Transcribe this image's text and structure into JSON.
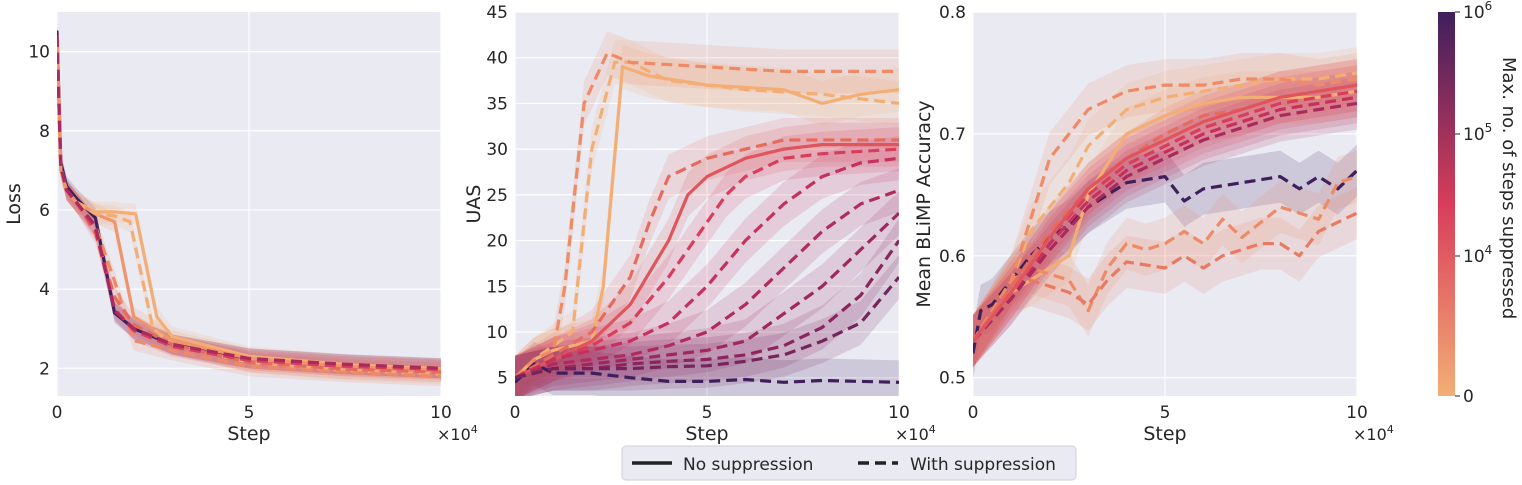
{
  "legend": {
    "solid_label": "No suppression",
    "dashed_label": "With suppression"
  },
  "colorbar": {
    "label": "Max. no. of steps suppressed",
    "ticks": [
      "0",
      "10^4",
      "10^5",
      "10^6"
    ],
    "scale": "log",
    "low_color": "#f3ae76",
    "mid_color": "#d83d5b",
    "high_color": "#3f1f5c"
  },
  "chart_data": [
    {
      "type": "line",
      "xlabel": "Step",
      "ylabel": "Loss",
      "x_multiplier": "×10^4",
      "xlim": [
        0,
        10
      ],
      "ylim": [
        1.3,
        11
      ],
      "x_ticks": [
        "0",
        "5",
        "10"
      ],
      "y_ticks": [
        "2",
        "4",
        "6",
        "8",
        "10"
      ],
      "series": [
        {
          "style": "solid",
          "color": "#3f1f5c",
          "x": [
            0,
            0.1,
            0.25,
            0.5,
            1,
            1.5,
            2,
            3,
            5,
            7.5,
            10
          ],
          "y": [
            10.5,
            7.2,
            6.6,
            6.3,
            5.8,
            3.4,
            3.0,
            2.6,
            2.25,
            2.1,
            2.0
          ]
        },
        {
          "style": "solid",
          "color": "#f3ae76",
          "x": [
            0,
            0.1,
            0.25,
            0.5,
            1,
            1.5,
            2.05,
            2.6,
            3,
            5,
            7.5,
            10
          ],
          "y": [
            10.3,
            7.0,
            6.5,
            6.2,
            5.95,
            5.95,
            5.9,
            3.3,
            2.8,
            2.3,
            2.1,
            2.0
          ]
        },
        {
          "style": "solid",
          "color": "#f0956b",
          "x": [
            0,
            0.1,
            0.25,
            0.5,
            1,
            1.5,
            2,
            3,
            5,
            7.5,
            10
          ],
          "y": [
            10.3,
            7.0,
            6.5,
            6.2,
            5.9,
            5.7,
            3.3,
            2.7,
            2.25,
            2.05,
            1.95
          ]
        },
        {
          "style": "dashed",
          "color": "#f3ae76",
          "x": [
            0,
            0.1,
            0.25,
            0.5,
            1,
            1.5,
            1.9,
            2.5,
            3,
            5,
            7.5,
            10
          ],
          "y": [
            10.4,
            7.1,
            6.5,
            6.2,
            5.9,
            5.85,
            5.7,
            3.0,
            2.6,
            2.15,
            1.95,
            1.85
          ]
        },
        {
          "style": "dashed",
          "color": "#ee8a66",
          "x": [
            0,
            0.1,
            0.25,
            0.5,
            1,
            1.5,
            2,
            3,
            5,
            7.5,
            10
          ],
          "y": [
            10.4,
            7.1,
            6.5,
            6.2,
            5.6,
            4.2,
            2.7,
            2.45,
            2.05,
            1.9,
            1.8
          ]
        },
        {
          "style": "dashed",
          "color": "#e56b5d",
          "x": [
            0,
            0.1,
            0.25,
            0.5,
            1,
            1.5,
            2,
            3,
            5,
            7.5,
            10
          ],
          "y": [
            10.4,
            7.1,
            6.5,
            6.2,
            5.4,
            3.8,
            3.1,
            2.6,
            2.15,
            1.98,
            1.9
          ]
        },
        {
          "style": "dashed",
          "color": "#d83d5b",
          "x": [
            0,
            0.1,
            0.25,
            0.5,
            1,
            1.5,
            2,
            3,
            5,
            7.5,
            10
          ],
          "y": [
            10.4,
            7.1,
            6.5,
            6.2,
            5.5,
            3.5,
            2.95,
            2.55,
            2.2,
            2.05,
            1.97
          ]
        },
        {
          "style": "dashed",
          "color": "#a82a5e",
          "x": [
            0,
            0.1,
            0.25,
            0.5,
            1,
            1.5,
            2,
            3,
            5,
            7.5,
            10
          ],
          "y": [
            10.4,
            7.1,
            6.5,
            6.2,
            5.6,
            3.45,
            3.0,
            2.6,
            2.25,
            2.1,
            2.0
          ]
        }
      ]
    },
    {
      "type": "line",
      "xlabel": "Step",
      "ylabel": "UAS",
      "x_multiplier": "×10^4",
      "xlim": [
        0,
        10
      ],
      "ylim": [
        3,
        45
      ],
      "x_ticks": [
        "0",
        "5",
        "10"
      ],
      "y_ticks": [
        "5",
        "10",
        "15",
        "20",
        "25",
        "30",
        "35",
        "40",
        "45"
      ],
      "series": [
        {
          "style": "dashed",
          "color": "#3f1f5c",
          "x": [
            0,
            0.5,
            1,
            2,
            3,
            4,
            5,
            6,
            7,
            8,
            9,
            10
          ],
          "y": [
            4.5,
            6.5,
            5.5,
            5.5,
            5.0,
            4.6,
            4.6,
            4.8,
            4.5,
            4.7,
            4.6,
            4.5
          ]
        },
        {
          "style": "solid",
          "color": "#f3ae76",
          "x": [
            0,
            0.5,
            1,
            1.5,
            2,
            2.3,
            2.8,
            3.5,
            5,
            7,
            8,
            9,
            10
          ],
          "y": [
            5,
            7,
            8,
            8.5,
            9,
            15,
            39,
            38,
            37,
            36.5,
            35,
            36,
            36.5
          ]
        },
        {
          "style": "dashed",
          "color": "#f3ae76",
          "x": [
            0,
            0.5,
            1,
            1.5,
            2,
            2.6,
            3,
            4,
            6,
            8,
            10
          ],
          "y": [
            5,
            7,
            8.5,
            10,
            30,
            39.5,
            39.5,
            37.5,
            36.5,
            36,
            35
          ]
        },
        {
          "style": "dashed",
          "color": "#ee8a66",
          "x": [
            0,
            0.5,
            1,
            1.3,
            1.8,
            2.4,
            3,
            5,
            7,
            10
          ],
          "y": [
            5,
            7,
            8,
            15,
            35,
            40.5,
            39.5,
            39,
            38.5,
            38.5
          ]
        },
        {
          "style": "dashed",
          "color": "#e56b5d",
          "x": [
            0,
            1,
            2,
            3,
            3.5,
            4,
            5,
            6,
            7,
            8,
            10
          ],
          "y": [
            5,
            7.5,
            10,
            16,
            22,
            27,
            29,
            30,
            31,
            31,
            31
          ]
        },
        {
          "style": "solid",
          "color": "#e0555c",
          "x": [
            0,
            1,
            2,
            3,
            4,
            4.5,
            5,
            6,
            7,
            8,
            10
          ],
          "y": [
            5,
            7,
            9,
            13,
            20,
            25,
            27,
            29,
            30,
            30.5,
            30.5
          ]
        },
        {
          "style": "dashed",
          "color": "#d83d5b",
          "x": [
            0,
            1,
            2,
            3,
            4,
            5,
            5.5,
            6,
            7,
            8,
            10
          ],
          "y": [
            5,
            7,
            8.5,
            11,
            16,
            22,
            25,
            27,
            29,
            29.5,
            30
          ]
        },
        {
          "style": "dashed",
          "color": "#c5305d",
          "x": [
            0,
            1,
            2,
            3,
            4,
            5,
            6,
            7,
            8,
            9,
            10
          ],
          "y": [
            5,
            7,
            8,
            9,
            11,
            15,
            20,
            24,
            27,
            28.5,
            29
          ]
        },
        {
          "style": "dashed",
          "color": "#b12b5e",
          "x": [
            0,
            1,
            2,
            3,
            4,
            5,
            6,
            7,
            8,
            9,
            10
          ],
          "y": [
            5,
            6.5,
            7,
            7.5,
            8.5,
            10,
            13,
            17,
            21,
            24,
            25.5
          ]
        },
        {
          "style": "dashed",
          "color": "#9e285e",
          "x": [
            0,
            1,
            2,
            3,
            4,
            5,
            6,
            7,
            8,
            9,
            10
          ],
          "y": [
            5,
            6,
            6.5,
            7,
            7.5,
            8,
            9,
            12,
            15,
            19,
            23
          ]
        },
        {
          "style": "dashed",
          "color": "#8a265d",
          "x": [
            0,
            1,
            2,
            3,
            4,
            5,
            6,
            7,
            8,
            9,
            10
          ],
          "y": [
            5,
            6,
            6,
            6.5,
            6.8,
            7,
            7.5,
            8.5,
            10.5,
            14,
            20
          ]
        },
        {
          "style": "dashed",
          "color": "#76245c",
          "x": [
            0,
            1,
            2,
            3,
            4,
            5,
            6,
            7,
            8,
            9,
            10
          ],
          "y": [
            5,
            6,
            6,
            6,
            6.2,
            6.3,
            6.8,
            7.5,
            9,
            11,
            16
          ]
        }
      ]
    },
    {
      "type": "line",
      "xlabel": "Step",
      "ylabel": "Mean BLiMP Accuracy",
      "x_multiplier": "×10^4",
      "xlim": [
        0,
        10
      ],
      "ylim": [
        0.485,
        0.8
      ],
      "x_ticks": [
        "0",
        "5",
        "10"
      ],
      "y_ticks": [
        "0.5",
        "0.6",
        "0.7",
        "0.8"
      ],
      "series": [
        {
          "style": "dashed",
          "color": "#3f1f5c",
          "x": [
            0,
            0.2,
            0.5,
            1,
            1.5,
            2,
            2.5,
            3,
            3.5,
            4,
            5,
            5.5,
            6,
            7,
            8,
            8.5,
            9,
            9.5,
            10
          ],
          "y": [
            0.52,
            0.555,
            0.56,
            0.58,
            0.6,
            0.615,
            0.625,
            0.64,
            0.65,
            0.66,
            0.665,
            0.645,
            0.655,
            0.66,
            0.665,
            0.655,
            0.665,
            0.655,
            0.67
          ]
        },
        {
          "style": "solid",
          "color": "#f3ae76",
          "x": [
            0,
            1,
            2,
            2.5,
            3,
            4,
            5,
            6,
            7,
            8,
            9,
            10
          ],
          "y": [
            0.53,
            0.57,
            0.59,
            0.6,
            0.65,
            0.7,
            0.715,
            0.725,
            0.73,
            0.73,
            0.73,
            0.735
          ]
        },
        {
          "style": "dashed",
          "color": "#f3ae76",
          "x": [
            0,
            1,
            1.5,
            2,
            2.5,
            3,
            4,
            5,
            6,
            7,
            8,
            9,
            10
          ],
          "y": [
            0.53,
            0.58,
            0.62,
            0.64,
            0.66,
            0.69,
            0.72,
            0.73,
            0.735,
            0.74,
            0.745,
            0.745,
            0.75
          ]
        },
        {
          "style": "dashed",
          "color": "#ee8a66",
          "x": [
            0,
            1,
            1.5,
            2,
            2.5,
            3,
            3.5,
            4,
            4.5,
            5,
            5.5,
            6,
            6.5,
            7,
            8,
            9,
            9.5,
            10
          ],
          "y": [
            0.53,
            0.58,
            0.59,
            0.585,
            0.58,
            0.555,
            0.59,
            0.61,
            0.605,
            0.61,
            0.62,
            0.61,
            0.63,
            0.615,
            0.64,
            0.63,
            0.66,
            0.665
          ]
        },
        {
          "style": "dashed",
          "color": "#e77a62",
          "x": [
            0,
            1,
            1.5,
            2,
            2.5,
            3,
            3.5,
            4,
            5,
            5.5,
            6,
            6.5,
            7,
            7.5,
            8,
            8.5,
            9,
            10
          ],
          "y": [
            0.53,
            0.575,
            0.58,
            0.575,
            0.57,
            0.56,
            0.58,
            0.595,
            0.59,
            0.6,
            0.59,
            0.6,
            0.605,
            0.61,
            0.61,
            0.6,
            0.62,
            0.635
          ]
        },
        {
          "style": "dashed",
          "color": "#ee8a66",
          "x": [
            0,
            1,
            1.5,
            2,
            2.5,
            3,
            4,
            5,
            6,
            7,
            8,
            9,
            10
          ],
          "y": [
            0.53,
            0.58,
            0.63,
            0.68,
            0.7,
            0.72,
            0.735,
            0.74,
            0.74,
            0.745,
            0.745,
            0.74,
            0.745
          ]
        },
        {
          "style": "dashed",
          "color": "#e56b5d",
          "x": [
            0,
            1,
            2,
            3,
            4,
            5,
            6,
            7,
            8,
            9,
            10
          ],
          "y": [
            0.53,
            0.575,
            0.62,
            0.655,
            0.68,
            0.7,
            0.715,
            0.72,
            0.73,
            0.735,
            0.74
          ]
        },
        {
          "style": "dashed",
          "color": "#d83d5b",
          "x": [
            0,
            1,
            2,
            3,
            4,
            5,
            6,
            7,
            8,
            9,
            10
          ],
          "y": [
            0.53,
            0.57,
            0.615,
            0.65,
            0.675,
            0.69,
            0.705,
            0.715,
            0.725,
            0.73,
            0.735
          ]
        },
        {
          "style": "dashed",
          "color": "#c5305d",
          "x": [
            0,
            1,
            2,
            3,
            4,
            5,
            6,
            7,
            8,
            9,
            10
          ],
          "y": [
            0.53,
            0.565,
            0.61,
            0.645,
            0.67,
            0.685,
            0.7,
            0.71,
            0.72,
            0.725,
            0.73
          ]
        },
        {
          "style": "dashed",
          "color": "#a82a5e",
          "x": [
            0,
            1,
            2,
            3,
            4,
            5,
            6,
            7,
            8,
            9,
            10
          ],
          "y": [
            0.53,
            0.565,
            0.605,
            0.64,
            0.665,
            0.68,
            0.695,
            0.705,
            0.715,
            0.72,
            0.725
          ]
        },
        {
          "style": "solid",
          "color": "#e0555c",
          "x": [
            0,
            1,
            2,
            3,
            4,
            5,
            6,
            7,
            8,
            9,
            10
          ],
          "y": [
            0.53,
            0.57,
            0.615,
            0.655,
            0.68,
            0.695,
            0.71,
            0.72,
            0.73,
            0.735,
            0.74
          ]
        }
      ]
    }
  ]
}
